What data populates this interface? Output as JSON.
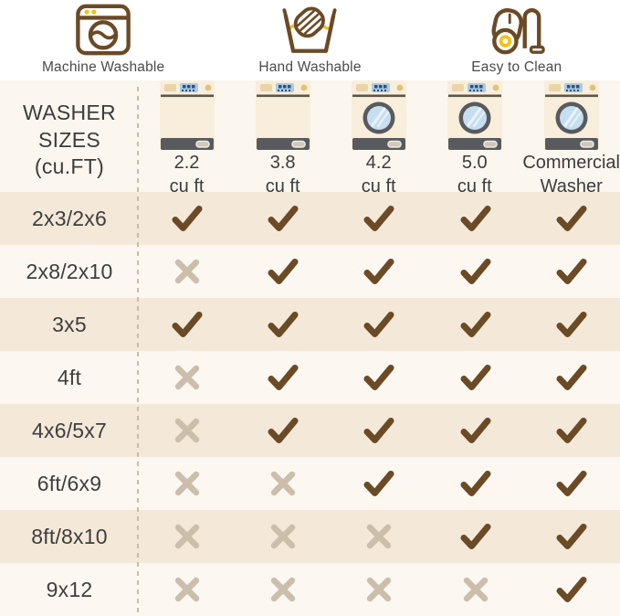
{
  "legend": [
    {
      "icon": "washing-machine-icon",
      "label": "Machine Washable"
    },
    {
      "icon": "hand-wash-icon",
      "label": "Hand Washable"
    },
    {
      "icon": "vacuum-icon",
      "label": "Easy to Clean"
    }
  ],
  "table": {
    "title_lines": [
      "WASHER",
      "SIZES",
      "(cu.FT)"
    ],
    "columns": [
      {
        "icon": "washer-top-load-icon",
        "porthole": false,
        "line1": "2.2",
        "line2": "cu ft"
      },
      {
        "icon": "washer-top-load-icon",
        "porthole": false,
        "line1": "3.8",
        "line2": "cu ft"
      },
      {
        "icon": "washer-front-load-icon",
        "porthole": true,
        "line1": "4.2",
        "line2": "cu ft"
      },
      {
        "icon": "washer-front-load-icon",
        "porthole": true,
        "line1": "5.0",
        "line2": "cu ft"
      },
      {
        "icon": "washer-front-load-icon",
        "porthole": true,
        "line1": "Commercial",
        "line2": "Washer"
      }
    ],
    "rows": [
      {
        "label": "2x3/2x6",
        "marks": [
          "check",
          "check",
          "check",
          "check",
          "check"
        ]
      },
      {
        "label": "2x8/2x10",
        "marks": [
          "x",
          "check",
          "check",
          "check",
          "check"
        ]
      },
      {
        "label": "3x5",
        "marks": [
          "check",
          "check",
          "check",
          "check",
          "check"
        ]
      },
      {
        "label": "4ft",
        "marks": [
          "x",
          "check",
          "check",
          "check",
          "check"
        ]
      },
      {
        "label": "4x6/5x7",
        "marks": [
          "x",
          "check",
          "check",
          "check",
          "check"
        ]
      },
      {
        "label": "6ft/6x9",
        "marks": [
          "x",
          "x",
          "check",
          "check",
          "check"
        ]
      },
      {
        "label": "8ft/8x10",
        "marks": [
          "x",
          "x",
          "x",
          "check",
          "check"
        ]
      },
      {
        "label": "9x12",
        "marks": [
          "x",
          "x",
          "x",
          "x",
          "check"
        ]
      }
    ]
  },
  "chart_data": {
    "type": "table",
    "title": "WASHER SIZES (cu.FT)",
    "legend": [
      "Machine Washable",
      "Hand Washable",
      "Easy to Clean"
    ],
    "columns": [
      "2.2 cu ft",
      "3.8 cu ft",
      "4.2 cu ft",
      "5.0 cu ft",
      "Commercial Washer"
    ],
    "row_labels": [
      "2x3/2x6",
      "2x8/2x10",
      "3x5",
      "4ft",
      "4x6/5x7",
      "6ft/6x9",
      "8ft/8x10",
      "9x12"
    ],
    "values": [
      [
        true,
        true,
        true,
        true,
        true
      ],
      [
        false,
        true,
        true,
        true,
        true
      ],
      [
        true,
        true,
        true,
        true,
        true
      ],
      [
        false,
        true,
        true,
        true,
        true
      ],
      [
        false,
        true,
        true,
        true,
        true
      ],
      [
        false,
        false,
        true,
        true,
        true
      ],
      [
        false,
        false,
        false,
        true,
        true
      ],
      [
        false,
        false,
        false,
        false,
        true
      ]
    ],
    "value_legend": {
      "true": "fits / washable (check mark)",
      "false": "does not fit (x mark)"
    }
  },
  "colors": {
    "check": "#6b4a26",
    "x_mark": "#cbbfac",
    "row_beige": "#f4e8d9",
    "row_cream": "#fcf8f1",
    "header_bg": "#fbf6ee",
    "dash": "#c9bca9",
    "icon_brown": "#6b4a26",
    "accent_yellow": "#f2c11e",
    "washer_body": "#f8eedb",
    "washer_dark": "#585a5e",
    "washer_display": "#a9cbe6",
    "washer_display_marks": "#31517a",
    "washer_glass": "#c7def0",
    "washer_drawer": "#e9d5a7",
    "washer_knob": "#dfc379",
    "washer_divider": "#5d5547",
    "washer_vent": "#cfc9bd"
  }
}
